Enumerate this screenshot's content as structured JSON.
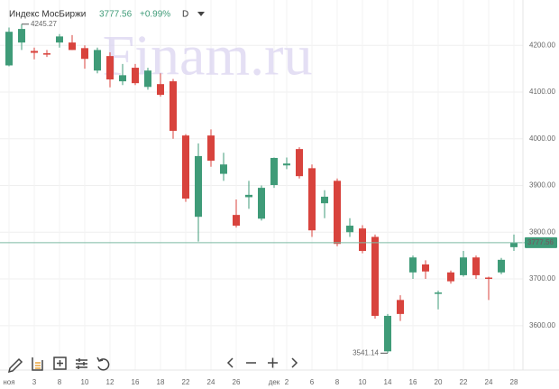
{
  "chart_data": {
    "type": "candlestick",
    "symbol": "Индекс МосБиржи",
    "price": "3777.56",
    "change": "+0.99%",
    "interval": "D",
    "watermark": "Finam.ru",
    "up_color": "#3f9b78",
    "down_color": "#d8433d",
    "grid": true,
    "categories": [
      "ноя",
      null,
      "3",
      null,
      "8",
      null,
      "10",
      null,
      "12",
      null,
      "16",
      null,
      "18",
      null,
      "22",
      null,
      "24",
      null,
      "26",
      null,
      null,
      "дек",
      "2",
      null,
      "6",
      null,
      "8",
      null,
      "10",
      null,
      "14",
      null,
      "16",
      null,
      "20",
      null,
      "22",
      null,
      "24",
      null,
      "28"
    ],
    "open": [
      4157,
      4206,
      4188,
      4183,
      4206,
      4206,
      4194,
      4146,
      4177,
      4123,
      4152,
      4111,
      4117,
      4123,
      4007,
      3833,
      4007,
      3925,
      3837,
      3875,
      3829,
      3901,
      3943,
      3978,
      3937,
      3862,
      3910,
      3800,
      3808,
      3790,
      3545,
      3655,
      3714,
      3731,
      3668,
      3714,
      3708,
      3746,
      3703,
      3714,
      3768
    ],
    "high": [
      4238,
      4245.27,
      4195,
      4190,
      4224,
      4222,
      4200,
      4195,
      4185,
      4160,
      4160,
      4152,
      4140,
      4128,
      4010,
      3990,
      4020,
      3970,
      3870,
      3910,
      3900,
      3960,
      3960,
      3982,
      3945,
      3890,
      3915,
      3830,
      3815,
      3795,
      3625,
      3665,
      3750,
      3740,
      3675,
      3718,
      3760,
      3750,
      3705,
      3745,
      3795
    ],
    "low": [
      4155,
      4190,
      4170,
      4175,
      4195,
      4190,
      4150,
      4140,
      4110,
      4115,
      4115,
      4105,
      4090,
      4000,
      3865,
      3780,
      3940,
      3910,
      3810,
      3850,
      3825,
      3895,
      3935,
      3915,
      3790,
      3830,
      3770,
      3790,
      3755,
      3615,
      3541.14,
      3610,
      3700,
      3700,
      3635,
      3690,
      3705,
      3700,
      3655,
      3710,
      3760
    ],
    "close": [
      4229,
      4235,
      4184,
      4180,
      4219,
      4190,
      4171,
      4190,
      4127,
      4136,
      4119,
      4146,
      4094,
      4017,
      3872,
      3963,
      3953,
      3945,
      3814,
      3880,
      3895,
      3959,
      3947,
      3920,
      3804,
      3876,
      3775,
      3814,
      3760,
      3621,
      3621,
      3625,
      3746,
      3716,
      3671,
      3695,
      3746,
      3708,
      3700,
      3741,
      3777.56
    ],
    "max_label": {
      "value": 4245.27,
      "label": "4245.27"
    },
    "min_label": {
      "value": 3541.14,
      "label": "3541.14"
    },
    "last": {
      "value": 3777.56,
      "label": "3777.56"
    },
    "last_color": "#7dbba4",
    "ylim": [
      3505,
      4297
    ],
    "yticks": [
      {
        "value": 3600,
        "label": "3600.00"
      },
      {
        "value": 3700,
        "label": "3700.00"
      },
      {
        "value": 3800,
        "label": "3800.00"
      },
      {
        "value": 3900,
        "label": "3900.00"
      },
      {
        "value": 4000,
        "label": "4000.00"
      },
      {
        "value": 4100,
        "label": "4100.00"
      },
      {
        "value": 4200,
        "label": "4200.00"
      }
    ]
  }
}
